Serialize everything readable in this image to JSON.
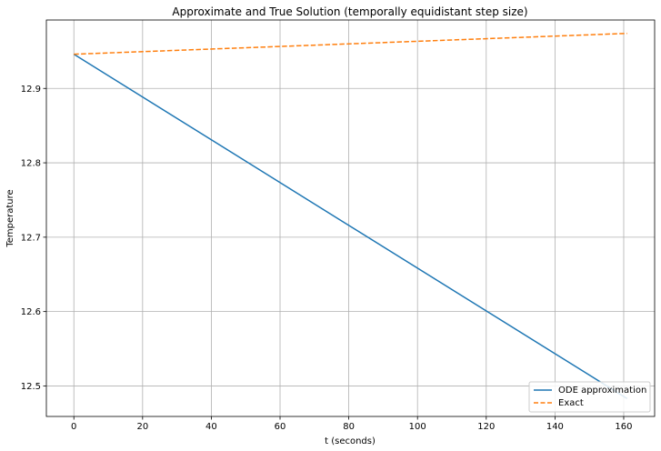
{
  "chart_data": {
    "type": "line",
    "title": "Approximate and True Solution (temporally equidistant step size)",
    "xlabel": "t (seconds)",
    "ylabel": "Temperature",
    "xlim": [
      -8,
      169
    ],
    "ylim": [
      12.459,
      12.992
    ],
    "xticks": [
      0,
      20,
      40,
      60,
      80,
      100,
      120,
      140,
      160
    ],
    "yticks": [
      12.5,
      12.6,
      12.7,
      12.8,
      12.9
    ],
    "ytick_labels": [
      "12.5",
      "12.6",
      "12.7",
      "12.8",
      "12.9"
    ],
    "grid": true,
    "legend_position": "lower right",
    "series": [
      {
        "name": "ODE approximation",
        "style": "solid",
        "color": "#1f77b4",
        "x": [
          0,
          161
        ],
        "y": [
          12.946,
          12.483
        ]
      },
      {
        "name": "Exact",
        "style": "dashed",
        "color": "#ff7f0e",
        "x": [
          0,
          161
        ],
        "y": [
          12.946,
          12.974
        ]
      }
    ]
  }
}
